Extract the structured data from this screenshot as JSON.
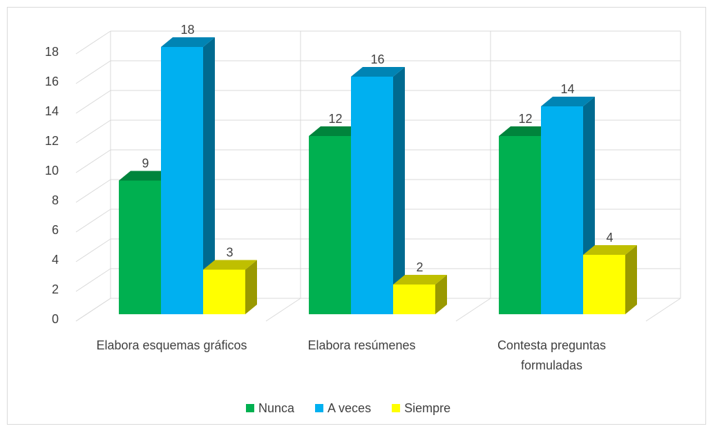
{
  "chart_data": {
    "type": "bar3d",
    "categories": [
      "Elabora esquemas gráficos",
      "Elabora resúmenes",
      "Contesta preguntas formuladas"
    ],
    "series": [
      {
        "name": "Nunca",
        "color": "#00b050",
        "values": [
          9,
          12,
          12
        ]
      },
      {
        "name": "A veces",
        "color": "#00b0f0",
        "values": [
          18,
          16,
          14
        ]
      },
      {
        "name": "Siempre",
        "color": "#ffff00",
        "values": [
          3,
          2,
          4
        ]
      }
    ],
    "ylim": [
      0,
      18
    ],
    "yticks": [
      0,
      2,
      4,
      6,
      8,
      10,
      12,
      14,
      16,
      18
    ],
    "grid": true,
    "legend": "bottom"
  }
}
